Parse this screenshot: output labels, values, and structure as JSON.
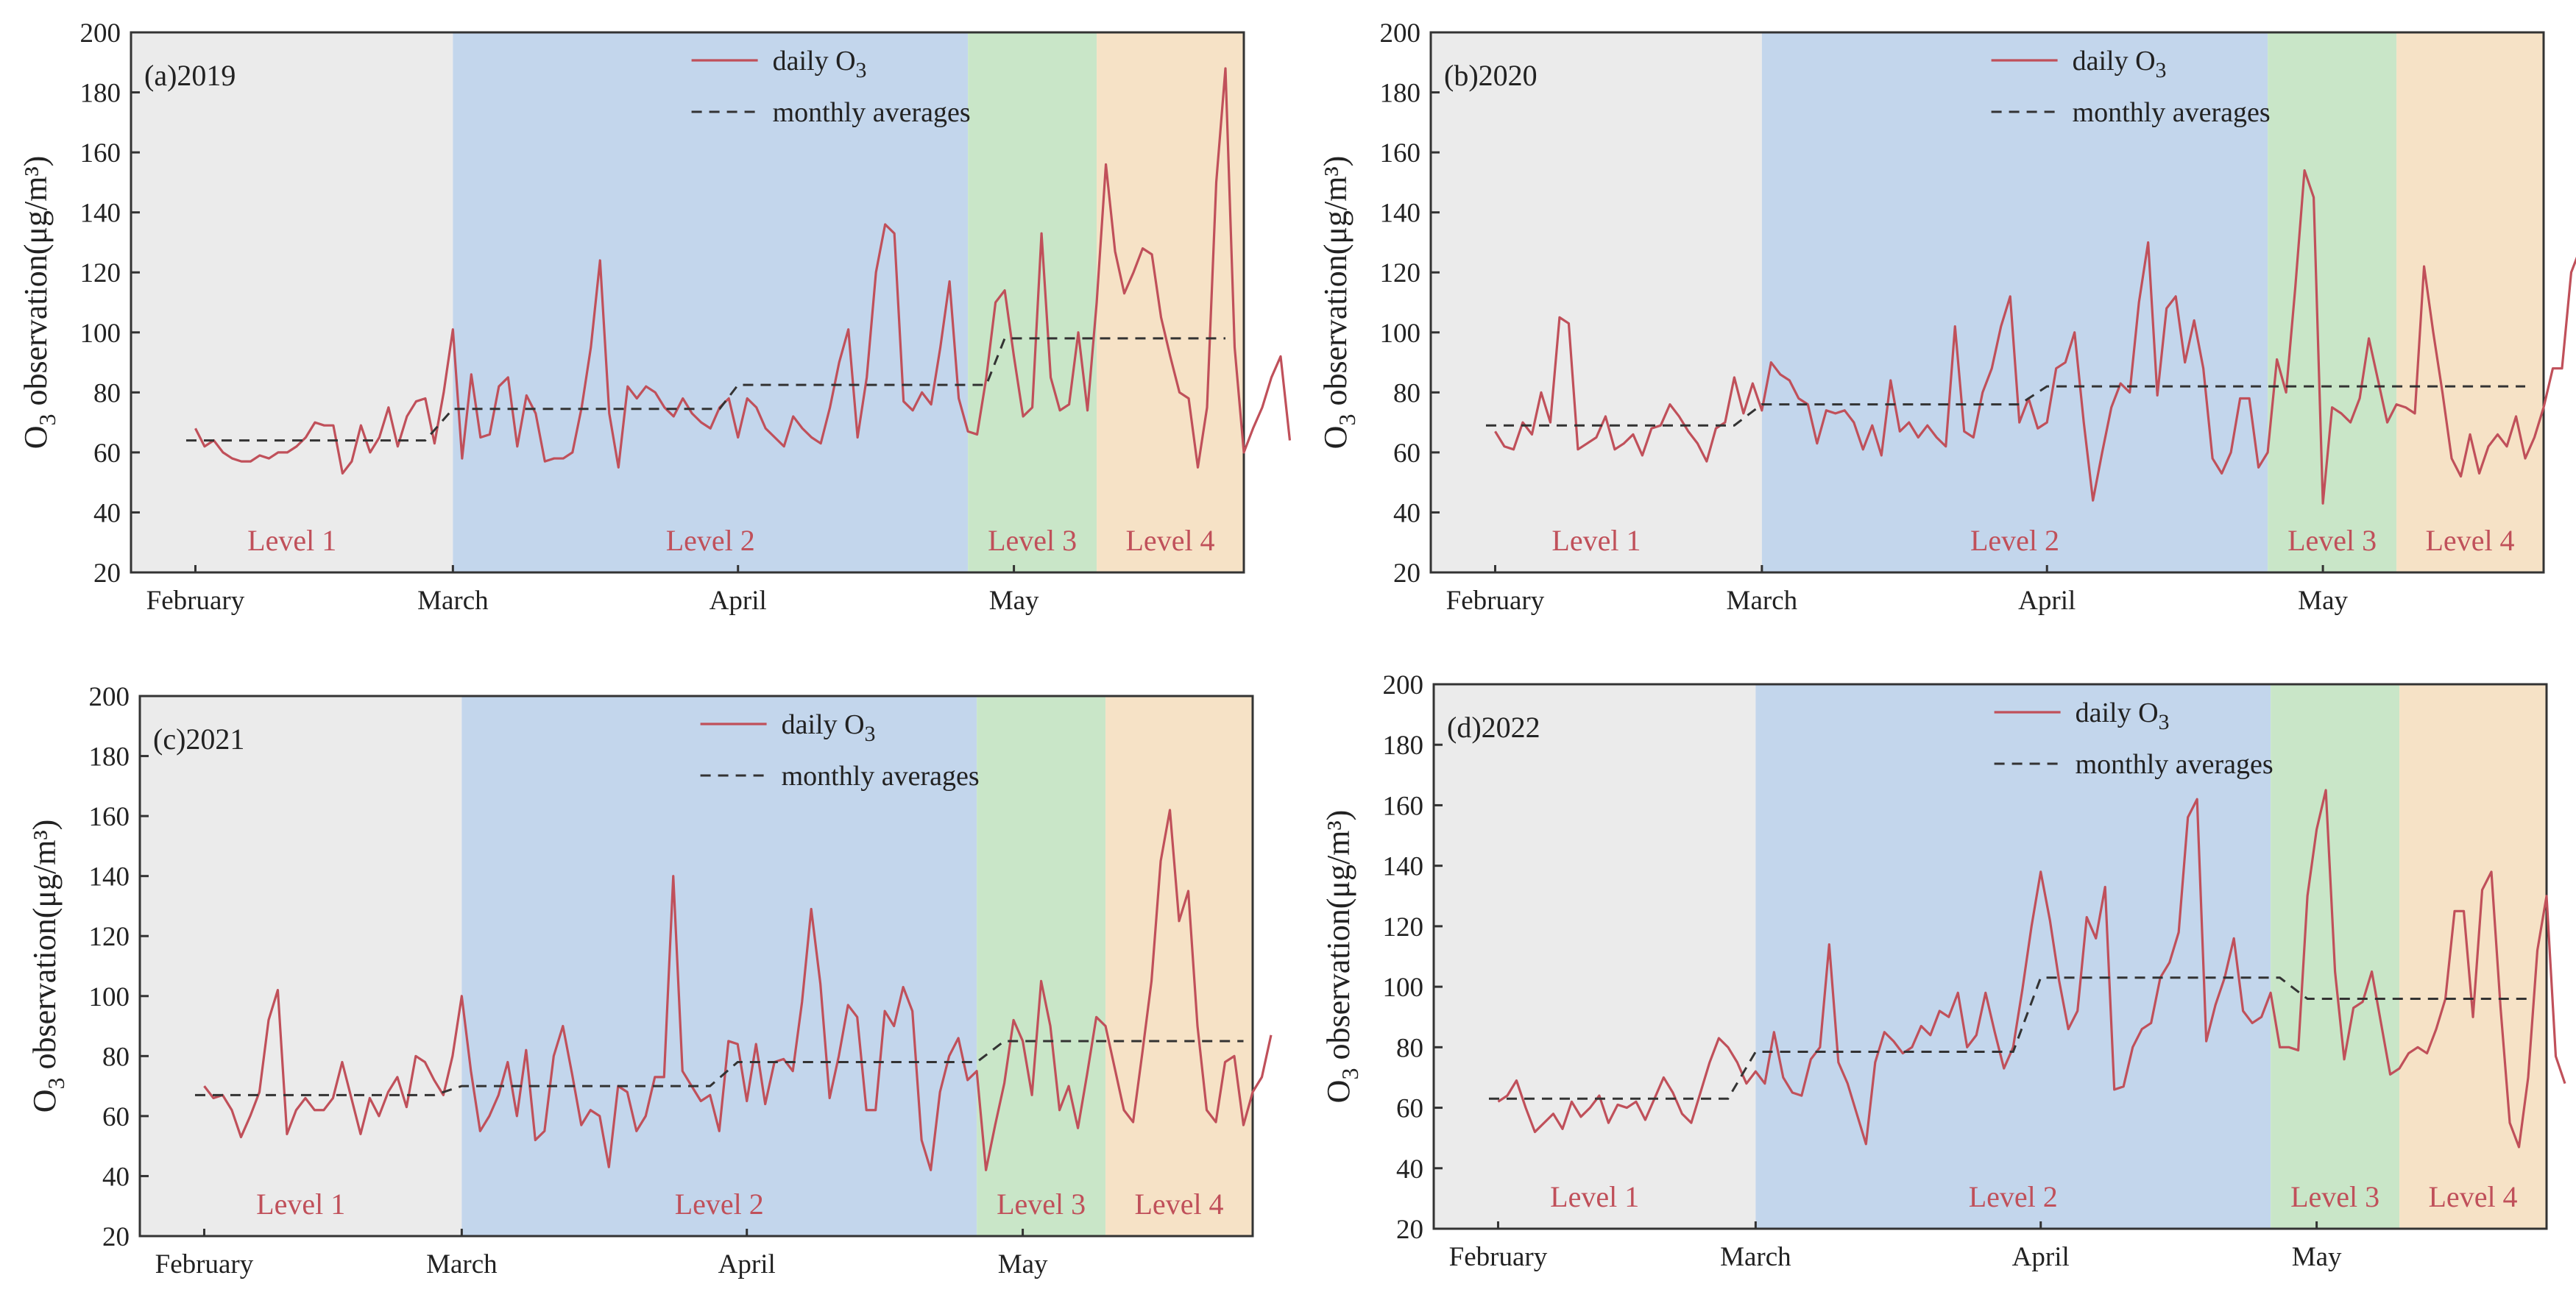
{
  "figure": {
    "ylabel": "O3 observation(μg/m³)",
    "legend": {
      "daily": "daily O3",
      "monthly": "monthly averages"
    },
    "colors": {
      "daily_line": "#c0505a",
      "monthly_line": "#333333",
      "level_text": "#c0505a",
      "level1_bg": "#ebebeb",
      "level2_bg": "#c3d6ec",
      "level3_bg": "#c9e6c8",
      "level4_bg": "#f6e2c6",
      "axis": "#333333"
    },
    "y_ticks": [
      20,
      40,
      60,
      80,
      100,
      120,
      140,
      160,
      180,
      200
    ],
    "month_labels": [
      "February",
      "March",
      "April",
      "May"
    ]
  },
  "chart_data": [
    {
      "type": "line",
      "panel_label": "(a)2019",
      "ylim": [
        20,
        200
      ],
      "xlim": [
        -7,
        114
      ],
      "month_ticks": [
        0,
        28,
        59,
        89
      ],
      "levels": [
        {
          "name": "Level 1",
          "start": -7,
          "end": 28
        },
        {
          "name": "Level 2",
          "start": 28,
          "end": 84
        },
        {
          "name": "Level 3",
          "start": 84,
          "end": 98
        },
        {
          "name": "Level 4",
          "start": 98,
          "end": 114
        }
      ],
      "series": [
        {
          "name": "daily O3",
          "values": [
            68,
            62,
            64,
            60,
            58,
            57,
            57,
            59,
            58,
            60,
            60,
            62,
            65,
            70,
            69,
            69,
            53,
            57,
            69,
            60,
            65,
            75,
            62,
            72,
            77,
            78,
            63,
            80,
            101,
            58,
            86,
            65,
            66,
            82,
            85,
            62,
            79,
            73,
            57,
            58,
            58,
            60,
            75,
            95,
            124,
            73,
            55,
            82,
            78,
            82,
            80,
            75,
            72,
            78,
            73,
            70,
            68,
            75,
            78,
            65,
            78,
            75,
            68,
            65,
            62,
            72,
            68,
            65,
            63,
            75,
            90,
            101,
            65,
            85,
            120,
            136,
            133,
            77,
            74,
            80,
            76,
            95,
            117,
            78,
            67,
            66,
            85,
            110,
            114,
            92,
            72,
            75,
            133,
            85,
            74,
            76,
            100,
            74,
            110,
            156,
            127,
            113,
            120,
            128,
            126,
            105,
            92,
            80,
            78,
            55,
            75,
            150,
            188,
            95,
            60,
            68,
            75,
            85,
            92,
            64
          ],
          "x_start": 0
        },
        {
          "name": "monthly averages",
          "x": [
            -1,
            25,
            28,
            57,
            59,
            86,
            88,
            112
          ],
          "y": [
            64,
            64,
            74.5,
            74.5,
            82.5,
            82.5,
            98,
            98
          ]
        }
      ]
    },
    {
      "type": "line",
      "panel_label": "(b)2020",
      "ylim": [
        20,
        200
      ],
      "xlim": [
        -7,
        114
      ],
      "month_ticks": [
        0,
        29,
        60,
        90
      ],
      "levels": [
        {
          "name": "Level 1",
          "start": -7,
          "end": 29
        },
        {
          "name": "Level 2",
          "start": 29,
          "end": 84
        },
        {
          "name": "Level 3",
          "start": 84,
          "end": 98
        },
        {
          "name": "Level 4",
          "start": 98,
          "end": 114
        }
      ],
      "series": [
        {
          "name": "daily O3",
          "values": [
            67,
            62,
            61,
            70,
            66,
            80,
            70,
            105,
            103,
            61,
            63,
            65,
            72,
            61,
            63,
            66,
            59,
            68,
            69,
            76,
            72,
            67,
            63,
            57,
            68,
            70,
            85,
            73,
            83,
            74,
            90,
            86,
            84,
            78,
            76,
            63,
            74,
            73,
            74,
            70,
            61,
            69,
            59,
            84,
            67,
            70,
            65,
            69,
            65,
            62,
            102,
            67,
            65,
            80,
            88,
            102,
            112,
            70,
            78,
            68,
            70,
            88,
            90,
            100,
            70,
            44,
            60,
            75,
            83,
            80,
            110,
            130,
            79,
            108,
            112,
            90,
            104,
            88,
            58,
            53,
            60,
            78,
            78,
            55,
            60,
            91,
            80,
            115,
            154,
            145,
            43,
            75,
            73,
            70,
            78,
            98,
            84,
            70,
            76,
            75,
            73,
            122,
            100,
            80,
            58,
            52,
            66,
            53,
            62,
            66,
            62,
            72,
            58,
            65,
            75,
            88,
            88,
            120,
            128
          ],
          "x_start": 0
        },
        {
          "name": "monthly averages",
          "x": [
            -1,
            26,
            29,
            57,
            60,
            87,
            90,
            112
          ],
          "y": [
            69,
            69,
            76,
            76,
            82,
            82,
            82,
            82
          ]
        }
      ]
    },
    {
      "type": "line",
      "panel_label": "(c)2021",
      "ylim": [
        20,
        200
      ],
      "xlim": [
        -7,
        114
      ],
      "month_ticks": [
        0,
        28,
        59,
        89
      ],
      "levels": [
        {
          "name": "Level 1",
          "start": -7,
          "end": 28
        },
        {
          "name": "Level 2",
          "start": 28,
          "end": 84
        },
        {
          "name": "Level 3",
          "start": 84,
          "end": 98
        },
        {
          "name": "Level 4",
          "start": 98,
          "end": 114
        }
      ],
      "series": [
        {
          "name": "daily O3",
          "values": [
            70,
            66,
            67,
            62,
            53,
            60,
            68,
            92,
            102,
            54,
            62,
            66,
            62,
            62,
            66,
            78,
            66,
            54,
            66,
            60,
            68,
            73,
            63,
            80,
            78,
            72,
            67,
            80,
            100,
            75,
            55,
            60,
            67,
            78,
            60,
            82,
            52,
            55,
            80,
            90,
            74,
            57,
            62,
            60,
            43,
            70,
            68,
            55,
            60,
            73,
            73,
            140,
            75,
            70,
            65,
            67,
            55,
            85,
            84,
            65,
            84,
            64,
            78,
            79,
            75,
            98,
            129,
            104,
            66,
            80,
            97,
            93,
            62,
            62,
            95,
            90,
            103,
            95,
            52,
            42,
            68,
            80,
            86,
            72,
            75,
            42,
            57,
            71,
            92,
            85,
            67,
            105,
            90,
            62,
            70,
            56,
            74,
            93,
            90,
            76,
            62,
            58,
            81,
            105,
            145,
            162,
            125,
            135,
            90,
            62,
            58,
            78,
            80,
            57,
            68,
            73,
            87
          ],
          "x_start": 0
        },
        {
          "name": "monthly averages",
          "x": [
            -1,
            25,
            28,
            55,
            58,
            84,
            87,
            113
          ],
          "y": [
            67,
            67,
            70,
            70,
            78,
            78,
            85,
            85
          ]
        }
      ]
    },
    {
      "type": "line",
      "panel_label": "(d)2022",
      "ylim": [
        20,
        200
      ],
      "xlim": [
        -7,
        114
      ],
      "month_ticks": [
        0,
        28,
        59,
        89
      ],
      "levels": [
        {
          "name": "Level 1",
          "start": -7,
          "end": 28
        },
        {
          "name": "Level 2",
          "start": 28,
          "end": 84
        },
        {
          "name": "Level 3",
          "start": 84,
          "end": 98
        },
        {
          "name": "Level 4",
          "start": 98,
          "end": 114
        }
      ],
      "series": [
        {
          "name": "daily O3",
          "values": [
            62,
            64,
            69,
            60,
            52,
            55,
            58,
            53,
            62,
            57,
            60,
            64,
            55,
            61,
            60,
            62,
            56,
            63,
            70,
            65,
            58,
            55,
            65,
            75,
            83,
            80,
            75,
            68,
            72,
            68,
            85,
            70,
            65,
            64,
            76,
            80,
            114,
            75,
            68,
            58,
            48,
            75,
            85,
            82,
            78,
            80,
            87,
            84,
            92,
            90,
            98,
            80,
            84,
            98,
            85,
            73,
            80,
            99,
            120,
            138,
            122,
            102,
            86,
            92,
            123,
            116,
            133,
            66,
            67,
            80,
            86,
            88,
            103,
            108,
            118,
            156,
            162,
            82,
            94,
            103,
            116,
            92,
            88,
            90,
            98,
            80,
            80,
            79,
            130,
            152,
            165,
            105,
            76,
            93,
            95,
            105,
            88,
            71,
            73,
            78,
            80,
            78,
            86,
            96,
            125,
            125,
            90,
            132,
            138,
            93,
            55,
            47,
            70,
            112,
            130,
            77,
            68
          ],
          "x_start": 0
        },
        {
          "name": "monthly averages",
          "x": [
            -1,
            25,
            28,
            56,
            59,
            85,
            88,
            112
          ],
          "y": [
            63,
            63,
            78.5,
            78.5,
            103,
            103,
            96,
            96
          ]
        }
      ]
    }
  ]
}
